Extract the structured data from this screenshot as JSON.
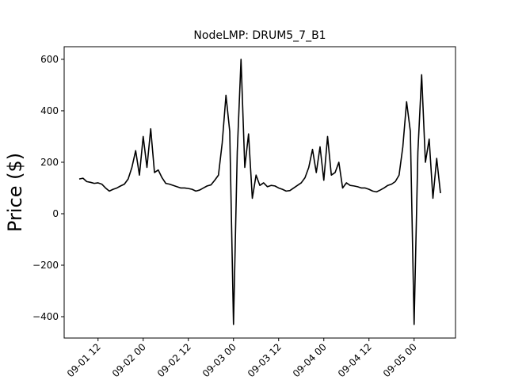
{
  "chart_data": {
    "type": "line",
    "title": "NodeLMP: DRUM5_7_B1",
    "y_label": "Price ($)",
    "x": [
      "09-01 07",
      "09-01 08",
      "09-01 09",
      "09-01 10",
      "09-01 11",
      "09-01 12",
      "09-01 13",
      "09-01 14",
      "09-01 15",
      "09-01 16",
      "09-01 17",
      "09-01 18",
      "09-01 19",
      "09-01 20",
      "09-01 21",
      "09-01 22",
      "09-01 23",
      "09-02 00",
      "09-02 01",
      "09-02 02",
      "09-02 03",
      "09-02 04",
      "09-02 05",
      "09-02 06",
      "09-02 07",
      "09-02 08",
      "09-02 09",
      "09-02 10",
      "09-02 11",
      "09-02 12",
      "09-02 13",
      "09-02 14",
      "09-02 15",
      "09-02 16",
      "09-02 17",
      "09-02 18",
      "09-02 19",
      "09-02 20",
      "09-02 21",
      "09-02 22",
      "09-02 23",
      "09-03 00",
      "09-03 01",
      "09-03 02",
      "09-03 03",
      "09-03 04",
      "09-03 05",
      "09-03 06",
      "09-03 07",
      "09-03 08",
      "09-03 09",
      "09-03 10",
      "09-03 11",
      "09-03 12",
      "09-03 13",
      "09-03 14",
      "09-03 15",
      "09-03 16",
      "09-03 17",
      "09-03 18",
      "09-03 19",
      "09-03 20",
      "09-03 21",
      "09-03 22",
      "09-03 23",
      "09-04 00",
      "09-04 01",
      "09-04 02",
      "09-04 03",
      "09-04 04",
      "09-04 05",
      "09-04 06",
      "09-04 07",
      "09-04 08",
      "09-04 09",
      "09-04 10",
      "09-04 11",
      "09-04 12",
      "09-04 13",
      "09-04 14",
      "09-04 15",
      "09-04 16",
      "09-04 17",
      "09-04 18",
      "09-04 19",
      "09-04 20",
      "09-04 21",
      "09-04 22",
      "09-04 23",
      "09-05 00",
      "09-05 01",
      "09-05 02",
      "09-05 03",
      "09-05 04",
      "09-05 05",
      "09-05 06",
      "09-05 07"
    ],
    "series": [
      {
        "name": "DRUM5_7_B1",
        "color": "#000000",
        "values": [
          135,
          138,
          125,
          122,
          118,
          120,
          115,
          100,
          88,
          95,
          100,
          108,
          115,
          135,
          180,
          245,
          150,
          300,
          180,
          330,
          160,
          170,
          140,
          118,
          115,
          110,
          105,
          100,
          100,
          98,
          95,
          88,
          92,
          100,
          108,
          112,
          130,
          150,
          275,
          460,
          320,
          -430,
          240,
          600,
          180,
          310,
          60,
          150,
          110,
          120,
          105,
          110,
          108,
          100,
          95,
          88,
          90,
          100,
          110,
          120,
          140,
          180,
          250,
          160,
          260,
          130,
          300,
          150,
          160,
          200,
          100,
          120,
          110,
          108,
          105,
          100,
          100,
          95,
          88,
          85,
          92,
          100,
          110,
          115,
          125,
          150,
          260,
          435,
          320,
          -430,
          240,
          540,
          200,
          290,
          60,
          215,
          80
        ]
      }
    ],
    "xlim": [
      "09-01 03",
      "09-05 11"
    ],
    "xticks": [
      "09-01 12",
      "09-02 00",
      "09-02 12",
      "09-03 00",
      "09-03 12",
      "09-04 00",
      "09-04 12",
      "09-05 00"
    ],
    "ylim": [
      -483,
      649
    ],
    "yticks": [
      {
        "value": -400,
        "label": "−400"
      },
      {
        "value": -200,
        "label": "−200"
      },
      0,
      200,
      400,
      600
    ]
  }
}
